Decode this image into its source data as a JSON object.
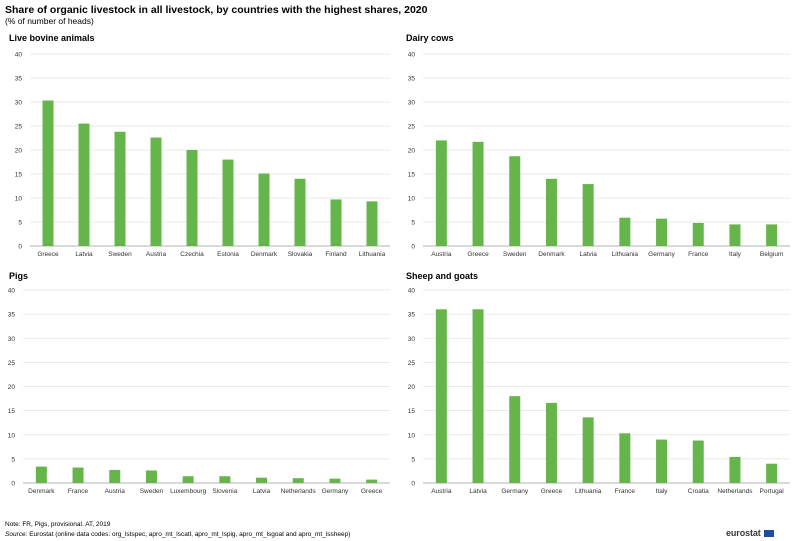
{
  "header": {
    "title": "Share of organic livestock in all livestock, by countries with the highest shares, 2020",
    "subtitle": "(% of number of heads)"
  },
  "colors": {
    "bar": "#66b54a",
    "grid": "#e3e3e3",
    "axis": "#9a9a9a",
    "text": "#333333"
  },
  "chart_data": [
    {
      "type": "bar",
      "title": "Live bovine animals",
      "categories": [
        "Greece",
        "Latvia",
        "Sweden",
        "Austria",
        "Czechia",
        "Estonia",
        "Denmark",
        "Slovakia",
        "Finland",
        "Lithuania"
      ],
      "values": [
        30.3,
        25.5,
        23.8,
        22.6,
        20.0,
        18.0,
        15.1,
        14.0,
        9.7,
        9.3
      ],
      "ylim": [
        0,
        40
      ],
      "yticks": [
        0,
        5,
        10,
        15,
        20,
        25,
        30,
        35,
        40
      ],
      "grid": true
    },
    {
      "type": "bar",
      "title": "Dairy cows",
      "categories": [
        "Austria",
        "Greece",
        "Sweden",
        "Denmark",
        "Latvia",
        "Lithuania",
        "Germany",
        "France",
        "Italy",
        "Belgium"
      ],
      "values": [
        22.0,
        21.7,
        18.7,
        14.0,
        12.9,
        5.9,
        5.7,
        4.8,
        4.5,
        4.5
      ],
      "ylim": [
        0,
        40
      ],
      "yticks": [
        0,
        5,
        10,
        15,
        20,
        25,
        30,
        35,
        40
      ],
      "grid": true
    },
    {
      "type": "bar",
      "title": "Pigs",
      "categories": [
        "Denmark",
        "France",
        "Austria",
        "Sweden",
        "Luxembourg",
        "Slovenia",
        "Latvia",
        "Netherlands",
        "Germany",
        "Greece"
      ],
      "values": [
        3.4,
        3.2,
        2.7,
        2.6,
        1.4,
        1.4,
        1.1,
        1.0,
        0.9,
        0.7
      ],
      "ylim": [
        0,
        40
      ],
      "yticks": [
        0,
        5,
        10,
        15,
        20,
        25,
        30,
        35,
        40
      ],
      "grid": true
    },
    {
      "type": "bar",
      "title": "Sheep and goats",
      "categories": [
        "Austria",
        "Latvia",
        "Germany",
        "Greece",
        "Lithuania",
        "France",
        "Italy",
        "Croatia",
        "Netherlands",
        "Portugal"
      ],
      "values": [
        36.0,
        36.0,
        18.0,
        16.6,
        13.6,
        10.3,
        9.0,
        8.8,
        5.4,
        4.0
      ],
      "ylim": [
        0,
        40
      ],
      "yticks": [
        0,
        5,
        10,
        15,
        20,
        25,
        30,
        35,
        40
      ],
      "grid": true
    }
  ],
  "footer": {
    "note": "Note: FR, Pigs, provisional. AT, 2019",
    "source_label": "Source:",
    "source_text": " Eurostat (online data codes: org_lstspec, apro_mt_lscatl, apro_mt_lspig, apro_mt_lsgoat and apro_mt_lssheep)",
    "logo": "eurostat"
  }
}
